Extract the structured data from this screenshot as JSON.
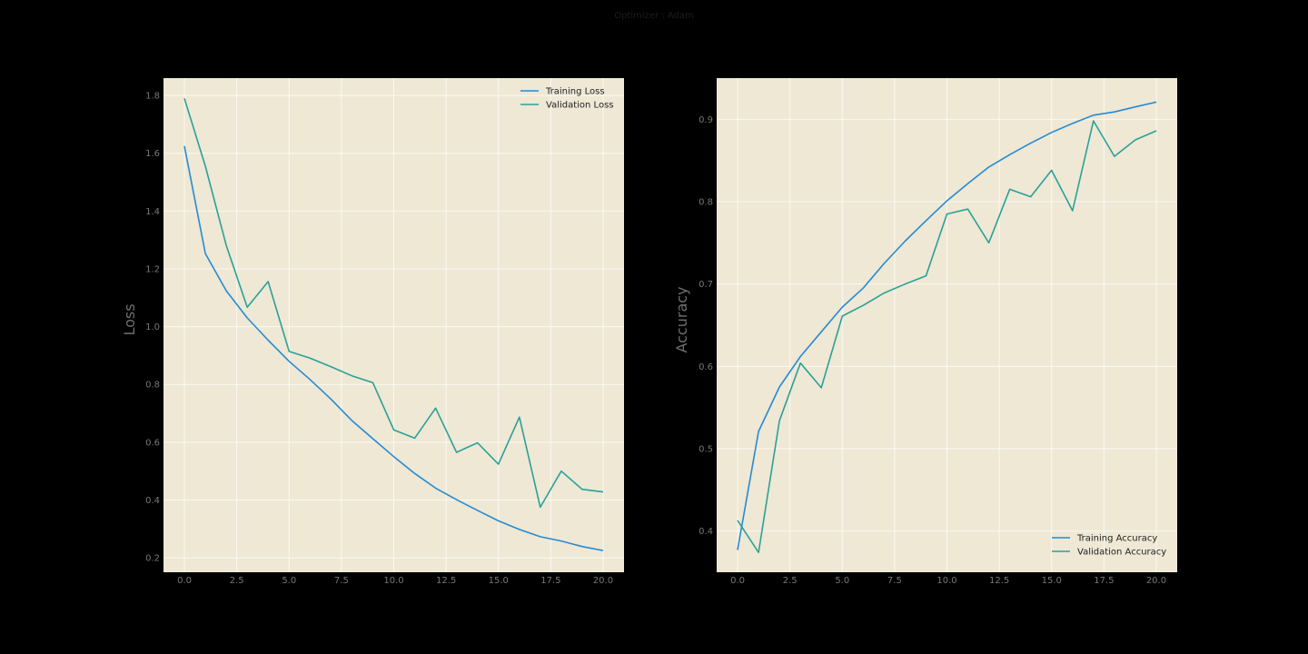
{
  "suptitle": "Optimizer : Adam",
  "colors": {
    "figure_bg": "#000000",
    "axes_bg": "#EEE8D5",
    "grid": "#FBF9F2",
    "training": "#268BD2",
    "validation": "#2AA198",
    "tick_text": "#777777"
  },
  "chart_data": [
    {
      "type": "line",
      "xlabel": "",
      "ylabel": "Loss",
      "xlim": [
        -1,
        21
      ],
      "ylim": [
        0.15,
        1.86
      ],
      "xticks": [
        0.0,
        2.5,
        5.0,
        7.5,
        10.0,
        12.5,
        15.0,
        17.5,
        20.0
      ],
      "xtick_labels": [
        "0.0",
        "2.5",
        "5.0",
        "7.5",
        "10.0",
        "12.5",
        "15.0",
        "17.5",
        "20.0"
      ],
      "yticks": [
        0.2,
        0.4,
        0.6,
        0.8,
        1.0,
        1.2,
        1.4,
        1.6,
        1.8
      ],
      "ytick_labels": [
        "0.2",
        "0.4",
        "0.6",
        "0.8",
        "1.0",
        "1.2",
        "1.4",
        "1.6",
        "1.8"
      ],
      "grid": true,
      "legend_position": "upper right",
      "x": [
        0,
        1,
        2,
        3,
        4,
        5,
        6,
        7,
        8,
        9,
        10,
        11,
        12,
        13,
        14,
        15,
        16,
        17,
        18,
        19,
        20
      ],
      "series": [
        {
          "name": "Training Loss",
          "color": "#268BD2",
          "values": [
            1.625,
            1.253,
            1.124,
            1.03,
            0.953,
            0.88,
            0.817,
            0.749,
            0.675,
            0.612,
            0.55,
            0.492,
            0.441,
            0.401,
            0.364,
            0.328,
            0.298,
            0.273,
            0.258,
            0.239,
            0.225
          ]
        },
        {
          "name": "Validation Loss",
          "color": "#2AA198",
          "values": [
            1.79,
            1.555,
            1.281,
            1.067,
            1.156,
            0.914,
            0.891,
            0.861,
            0.83,
            0.806,
            0.643,
            0.614,
            0.718,
            0.565,
            0.598,
            0.524,
            0.687,
            0.375,
            0.5,
            0.437,
            0.428
          ]
        }
      ]
    },
    {
      "type": "line",
      "xlabel": "",
      "ylabel": "Accuracy",
      "xlim": [
        -1,
        21
      ],
      "ylim": [
        0.35,
        0.95
      ],
      "xticks": [
        0.0,
        2.5,
        5.0,
        7.5,
        10.0,
        12.5,
        15.0,
        17.5,
        20.0
      ],
      "xtick_labels": [
        "0.0",
        "2.5",
        "5.0",
        "7.5",
        "10.0",
        "12.5",
        "15.0",
        "17.5",
        "20.0"
      ],
      "yticks": [
        0.4,
        0.5,
        0.6,
        0.7,
        0.8,
        0.9
      ],
      "ytick_labels": [
        "0.4",
        "0.5",
        "0.6",
        "0.7",
        "0.8",
        "0.9"
      ],
      "grid": true,
      "legend_position": "lower right",
      "x": [
        0,
        1,
        2,
        3,
        4,
        5,
        6,
        7,
        8,
        9,
        10,
        11,
        12,
        13,
        14,
        15,
        16,
        17,
        18,
        19,
        20
      ],
      "series": [
        {
          "name": "Training Accuracy",
          "color": "#268BD2",
          "values": [
            0.377,
            0.521,
            0.575,
            0.612,
            0.642,
            0.672,
            0.695,
            0.725,
            0.752,
            0.777,
            0.801,
            0.822,
            0.842,
            0.857,
            0.871,
            0.884,
            0.895,
            0.905,
            0.909,
            0.915,
            0.921
          ]
        },
        {
          "name": "Validation Accuracy",
          "color": "#2AA198",
          "values": [
            0.413,
            0.374,
            0.534,
            0.604,
            0.574,
            0.661,
            0.674,
            0.689,
            0.7,
            0.71,
            0.785,
            0.791,
            0.75,
            0.815,
            0.806,
            0.838,
            0.789,
            0.898,
            0.855,
            0.875,
            0.886
          ]
        }
      ]
    }
  ]
}
